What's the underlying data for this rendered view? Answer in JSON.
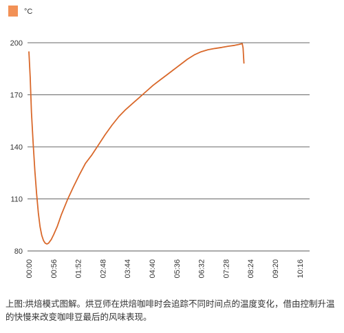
{
  "caption": "上图:烘焙模式图解。烘豆师在烘焙咖啡时会追踪不同时间点的温度变化，借由控制升温的快慢来改变咖啡豆最后的风味表现。",
  "chart_data": {
    "type": "line",
    "title": "",
    "xlabel": "",
    "ylabel": "",
    "legend": {
      "position": "top-left",
      "entries": [
        "°C"
      ]
    },
    "grid": true,
    "ylim": [
      80,
      200
    ],
    "yticks": [
      80,
      110,
      140,
      170,
      200
    ],
    "xticks": [
      "00:00",
      "00:56",
      "01:52",
      "02:48",
      "03:44",
      "04:40",
      "05:36",
      "06:32",
      "07:28",
      "08:24",
      "09:20",
      "10:16"
    ],
    "x_unit": "seconds",
    "xlim": [
      0,
      652
    ],
    "series": [
      {
        "name": "°C",
        "color": "#d9682a",
        "points": [
          [
            0,
            195
          ],
          [
            3,
            180
          ],
          [
            6,
            160
          ],
          [
            10,
            142
          ],
          [
            14,
            126
          ],
          [
            18,
            113
          ],
          [
            22,
            102
          ],
          [
            26,
            94
          ],
          [
            30,
            89
          ],
          [
            34,
            86
          ],
          [
            38,
            84.5
          ],
          [
            42,
            84
          ],
          [
            46,
            84.5
          ],
          [
            52,
            86.5
          ],
          [
            58,
            89.5
          ],
          [
            66,
            94
          ],
          [
            76,
            101
          ],
          [
            90,
            109.5
          ],
          [
            104,
            117
          ],
          [
            118,
            124
          ],
          [
            132,
            130.5
          ],
          [
            146,
            135
          ],
          [
            162,
            141
          ],
          [
            178,
            147
          ],
          [
            194,
            152.5
          ],
          [
            210,
            157.5
          ],
          [
            226,
            161.5
          ],
          [
            242,
            165
          ],
          [
            258,
            168.5
          ],
          [
            274,
            172
          ],
          [
            290,
            175.5
          ],
          [
            306,
            178.5
          ],
          [
            322,
            181.5
          ],
          [
            338,
            184.5
          ],
          [
            354,
            187.5
          ],
          [
            370,
            190.5
          ],
          [
            386,
            193
          ],
          [
            402,
            194.8
          ],
          [
            418,
            196
          ],
          [
            434,
            196.7
          ],
          [
            450,
            197.3
          ],
          [
            466,
            198
          ],
          [
            480,
            198.5
          ],
          [
            490,
            199
          ],
          [
            498,
            199.5
          ],
          [
            500,
            197
          ],
          [
            502,
            188
          ]
        ]
      }
    ]
  }
}
